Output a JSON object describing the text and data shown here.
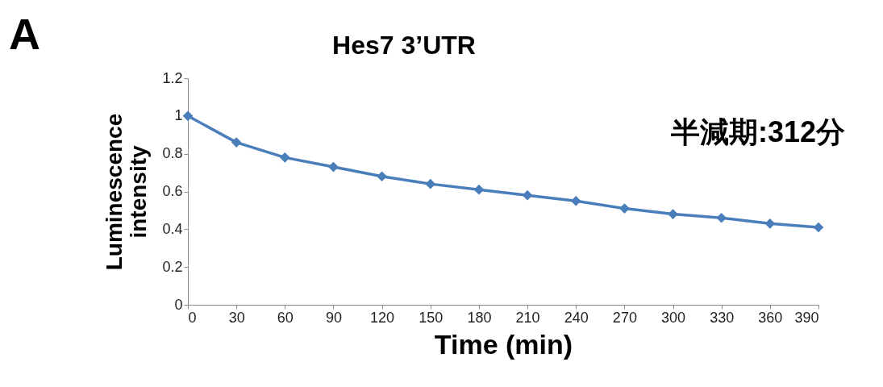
{
  "chart_data": {
    "type": "line",
    "title": "Hes7 3’UTR",
    "xlabel": "Time (min)",
    "ylabel": "Luminescence intensity",
    "annotations": [
      "A",
      "半減期:312分"
    ],
    "x": [
      0,
      30,
      60,
      90,
      120,
      150,
      180,
      210,
      240,
      270,
      300,
      330,
      360,
      390
    ],
    "series": [
      {
        "color": "#4a7ebb",
        "values": [
          1.0,
          0.86,
          0.78,
          0.73,
          0.68,
          0.64,
          0.61,
          0.58,
          0.55,
          0.51,
          0.48,
          0.46,
          0.43,
          0.41
        ]
      }
    ],
    "xlim": [
      0,
      390
    ],
    "xticks": [
      0,
      30,
      60,
      90,
      120,
      150,
      180,
      210,
      240,
      270,
      300,
      330,
      360,
      390
    ],
    "ylim": [
      0,
      1.2
    ],
    "yticks": [
      0,
      0.2,
      0.4,
      0.6,
      0.8,
      1,
      1.2
    ],
    "marker": "diamond",
    "line_style": "solid"
  }
}
